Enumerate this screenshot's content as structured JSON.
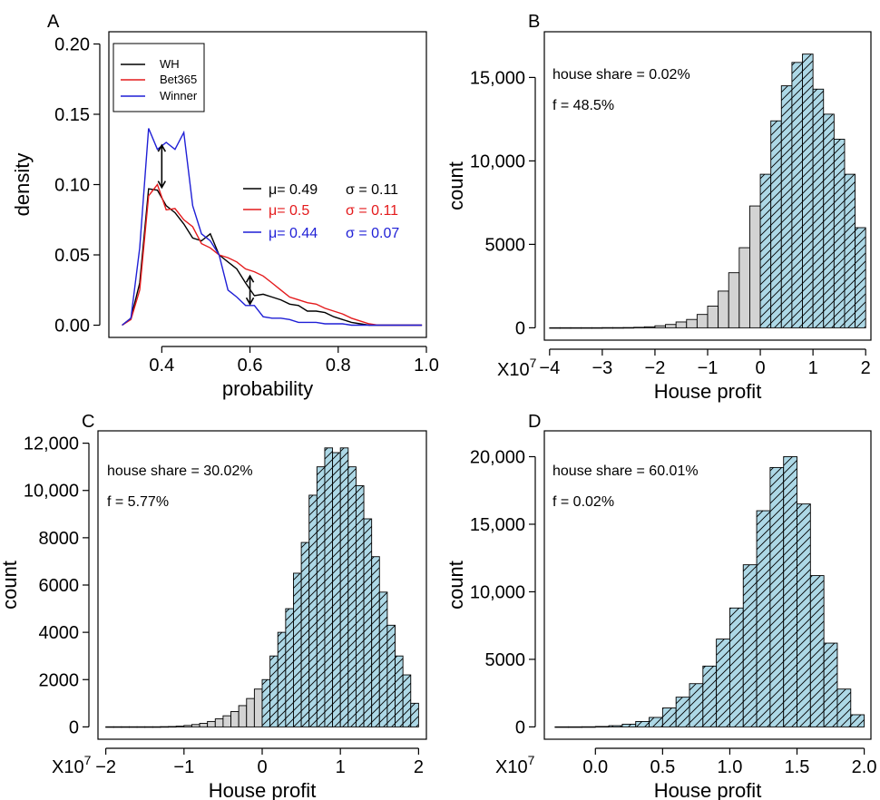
{
  "panels": {
    "A": {
      "label": "A",
      "legend": [
        "WH",
        "Bet365",
        "Winner"
      ],
      "stats": [
        {
          "mu": "μ= 0.49",
          "sigma": "σ = 0.11",
          "color": "#000000"
        },
        {
          "mu": "μ= 0.5",
          "sigma": "σ = 0.11",
          "color": "#e41a1c"
        },
        {
          "mu": "μ= 0.44",
          "sigma": "σ = 0.07",
          "color": "#1f1fd6"
        }
      ]
    },
    "B": {
      "label": "B",
      "ann1": "house share = 0.02%",
      "ann2": "f = 48.5%",
      "multiplier": "X10",
      "exp": "7"
    },
    "C": {
      "label": "C",
      "ann1": "house share = 30.02%",
      "ann2": "f = 5.77%",
      "multiplier": "X10",
      "exp": "7"
    },
    "D": {
      "label": "D",
      "ann1": "house share = 60.01%",
      "ann2": "f = 0.02%",
      "multiplier": "X10",
      "exp": "7"
    }
  },
  "colors": {
    "positive_fill": "#add8e6",
    "negative_fill": "#d3d3d3",
    "wh": "#000000",
    "bet365": "#e41a1c",
    "winner": "#1f1fd6"
  },
  "chart_data": [
    {
      "type": "line",
      "panel": "A",
      "xlabel": "probability",
      "ylabel": "density",
      "xlim": [
        0.28,
        1.0
      ],
      "ylim": [
        0,
        0.2
      ],
      "x_ticks": [
        "0.4",
        "0.6",
        "0.8",
        "1.0"
      ],
      "y_ticks": [
        "0.00",
        "0.05",
        "0.10",
        "0.15",
        "0.20"
      ],
      "legend_position": "top-left",
      "series": [
        {
          "name": "WH",
          "color": "#000000",
          "x": [
            0.31,
            0.33,
            0.35,
            0.37,
            0.39,
            0.41,
            0.43,
            0.45,
            0.47,
            0.49,
            0.51,
            0.53,
            0.55,
            0.57,
            0.59,
            0.61,
            0.63,
            0.65,
            0.67,
            0.69,
            0.71,
            0.73,
            0.75,
            0.77,
            0.79,
            0.81,
            0.83,
            0.85,
            0.87,
            0.89,
            0.91,
            0.99
          ],
          "y": [
            0.0,
            0.005,
            0.03,
            0.097,
            0.096,
            0.085,
            0.08,
            0.072,
            0.062,
            0.06,
            0.065,
            0.05,
            0.045,
            0.04,
            0.03,
            0.021,
            0.022,
            0.02,
            0.018,
            0.015,
            0.014,
            0.01,
            0.01,
            0.009,
            0.006,
            0.004,
            0.002,
            0.001,
            0.0,
            0.0,
            0.0,
            0.0
          ]
        },
        {
          "name": "Bet365",
          "color": "#e41a1c",
          "x": [
            0.31,
            0.33,
            0.35,
            0.37,
            0.39,
            0.41,
            0.43,
            0.45,
            0.47,
            0.49,
            0.51,
            0.53,
            0.55,
            0.57,
            0.59,
            0.61,
            0.63,
            0.65,
            0.67,
            0.69,
            0.71,
            0.73,
            0.75,
            0.77,
            0.79,
            0.81,
            0.83,
            0.85,
            0.87,
            0.89,
            0.91,
            0.99
          ],
          "y": [
            0.0,
            0.004,
            0.025,
            0.092,
            0.1,
            0.082,
            0.083,
            0.075,
            0.07,
            0.058,
            0.055,
            0.05,
            0.048,
            0.045,
            0.04,
            0.038,
            0.035,
            0.03,
            0.025,
            0.02,
            0.018,
            0.016,
            0.015,
            0.012,
            0.01,
            0.008,
            0.005,
            0.003,
            0.001,
            0.0,
            0.0,
            0.0
          ]
        },
        {
          "name": "Winner",
          "color": "#1f1fd6",
          "x": [
            0.31,
            0.33,
            0.35,
            0.37,
            0.39,
            0.41,
            0.43,
            0.45,
            0.47,
            0.49,
            0.51,
            0.53,
            0.55,
            0.57,
            0.59,
            0.61,
            0.63,
            0.65,
            0.67,
            0.69,
            0.71,
            0.73,
            0.75,
            0.77,
            0.79,
            0.81,
            0.83,
            0.85,
            0.87,
            0.89,
            0.91,
            0.99
          ],
          "y": [
            0.0,
            0.005,
            0.055,
            0.14,
            0.125,
            0.13,
            0.125,
            0.137,
            0.085,
            0.065,
            0.06,
            0.05,
            0.025,
            0.02,
            0.014,
            0.014,
            0.006,
            0.005,
            0.005,
            0.004,
            0.002,
            0.002,
            0.002,
            0.001,
            0.001,
            0.001,
            0.0,
            0.0,
            0.0,
            0.0,
            0.0,
            0.0
          ]
        }
      ],
      "arrows": [
        {
          "x": 0.4,
          "y_from": 0.128,
          "y_to": 0.098
        },
        {
          "x": 0.6,
          "y_from": 0.035,
          "y_to": 0.015
        }
      ]
    },
    {
      "type": "bar",
      "panel": "B",
      "xlabel": "House profit",
      "ylabel": "count",
      "xlim": [
        -4.1,
        2.1
      ],
      "ylim": [
        0,
        17000
      ],
      "x_ticks": [
        "−4",
        "−3",
        "−2",
        "−1",
        "0",
        "1",
        "2"
      ],
      "y_ticks": [
        "0",
        "5000",
        "10,000",
        "15,000"
      ],
      "bin_edges": [
        -4.0,
        -3.8,
        -3.6,
        -3.4,
        -3.2,
        -3.0,
        -2.8,
        -2.6,
        -2.4,
        -2.2,
        -2.0,
        -1.8,
        -1.6,
        -1.4,
        -1.2,
        -1.0,
        -0.8,
        -0.6,
        -0.4,
        -0.2,
        0.0,
        0.2,
        0.4,
        0.6,
        0.8,
        1.0,
        1.2,
        1.4,
        1.6,
        1.8,
        2.0
      ],
      "counts": [
        5,
        5,
        5,
        5,
        5,
        10,
        10,
        15,
        30,
        60,
        120,
        200,
        350,
        500,
        800,
        1300,
        2200,
        3300,
        4800,
        7300,
        9200,
        12400,
        14500,
        15900,
        16400,
        14300,
        12800,
        11300,
        9200,
        6000
      ]
    },
    {
      "type": "bar",
      "panel": "C",
      "xlabel": "House profit",
      "ylabel": "count",
      "xlim": [
        -2.1,
        2.1
      ],
      "ylim": [
        0,
        12000
      ],
      "x_ticks": [
        "−2",
        "−1",
        "0",
        "1",
        "2"
      ],
      "y_ticks": [
        "0",
        "2000",
        "4000",
        "6000",
        "8000",
        "10,000",
        "12,000"
      ],
      "bin_edges": [
        -2.0,
        -1.9,
        -1.8,
        -1.7,
        -1.6,
        -1.5,
        -1.4,
        -1.3,
        -1.2,
        -1.1,
        -1.0,
        -0.9,
        -0.8,
        -0.7,
        -0.6,
        -0.5,
        -0.4,
        -0.3,
        -0.2,
        -0.1,
        0.0,
        0.1,
        0.2,
        0.3,
        0.4,
        0.5,
        0.6,
        0.7,
        0.8,
        0.9,
        1.0,
        1.1,
        1.2,
        1.3,
        1.4,
        1.5,
        1.6,
        1.7,
        1.8,
        1.9,
        2.0
      ],
      "counts": [
        5,
        5,
        5,
        5,
        5,
        5,
        5,
        10,
        15,
        30,
        60,
        100,
        150,
        230,
        340,
        470,
        650,
        900,
        1200,
        1600,
        2000,
        3000,
        4000,
        5000,
        6500,
        7800,
        9800,
        11000,
        11800,
        11600,
        11800,
        11000,
        10200,
        8800,
        7200,
        5700,
        4300,
        3000,
        2200,
        1000
      ]
    },
    {
      "type": "bar",
      "panel": "D",
      "xlabel": "House profit",
      "ylabel": "count",
      "xlim": [
        -0.38,
        2.05
      ],
      "ylim": [
        0,
        21000
      ],
      "x_ticks": [
        "0.0",
        "0.5",
        "1.0",
        "1.5",
        "2.0"
      ],
      "y_ticks": [
        "0",
        "5000",
        "10,000",
        "15,000",
        "20,000"
      ],
      "bin_edges": [
        -0.3,
        -0.2,
        -0.1,
        0.0,
        0.1,
        0.2,
        0.3,
        0.4,
        0.5,
        0.6,
        0.7,
        0.8,
        0.9,
        1.0,
        1.1,
        1.2,
        1.3,
        1.4,
        1.5,
        1.6,
        1.7,
        1.8,
        1.9,
        2.0
      ],
      "counts": [
        5,
        5,
        10,
        30,
        90,
        200,
        400,
        700,
        1400,
        2200,
        3200,
        4500,
        6500,
        8800,
        12000,
        16000,
        19200,
        20000,
        16500,
        11200,
        6200,
        2800,
        900,
        200
      ]
    }
  ]
}
